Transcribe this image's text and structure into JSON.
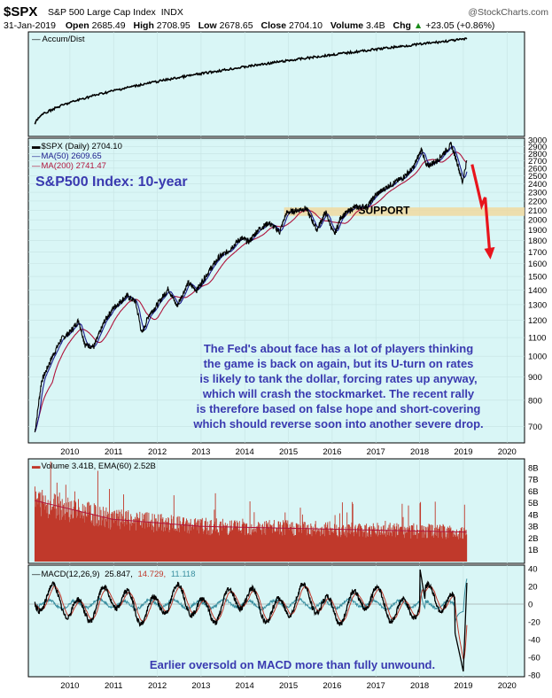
{
  "header": {
    "symbol": "$SPX",
    "name": "S&P 500 Large Cap Index",
    "exchange": "INDX",
    "watermark": "@StockCharts.com",
    "date": "31-Jan-2019",
    "open_label": "Open",
    "open": "2685.49",
    "high_label": "High",
    "high": "2708.95",
    "low_label": "Low",
    "low": "2678.65",
    "close_label": "Close",
    "close": "2704.10",
    "volume_label": "Volume",
    "volume": "3.4B",
    "chg_label": "Chg",
    "chg": "+23.05 (+0.86%)",
    "chg_arrow": "▲"
  },
  "panels": {
    "accum": {
      "label": "Accum/Dist"
    },
    "price": {
      "legend_price": "$SPX (Daily) 2704.10",
      "legend_ma50": "MA(50) 2609.65",
      "legend_ma200": "MA(200) 2741.47",
      "title": "S&P500 Index: 10-year",
      "support_label": "SUPPORT",
      "annotation": [
        "The Fed's about face has a lot of players thinking",
        "the game is back on again, but its U-turn on rates",
        "is likely to tank the dollar, forcing rates up anyway,",
        "which will crash the stockmarket. The recent rally",
        "is therefore based on false hope and short-covering",
        "which should reverse soon into another severe drop."
      ]
    },
    "volume": {
      "legend": "Volume 3.41B, EMA(60) 2.52B"
    },
    "macd": {
      "legend_name": "MACD(12,26,9)",
      "legend_v1": "25.847,",
      "legend_v2": "14.729,",
      "legend_v3": "11.118",
      "annotation": "Earlier oversold on MACD more than fully unwound."
    }
  },
  "colors": {
    "panel_bg": "#d9f6f6",
    "price_line": "#000000",
    "ma50": "#1a1a8c",
    "ma200": "#b0143c",
    "volume_bars": "#c0392b",
    "support_band": "#f0d9a0",
    "forecast_arrow": "#e8141c",
    "annotation_text": "#3a3ab0"
  },
  "chart_data": {
    "type": "line",
    "title": "S&P500 Index: 10-year",
    "x_ticks": [
      "2010",
      "2011",
      "2012",
      "2013",
      "2014",
      "2015",
      "2016",
      "2017",
      "2018",
      "2019",
      "2020"
    ],
    "price_axis": {
      "scale": "log",
      "range": [
        650,
        3000
      ],
      "ticks": [
        700,
        800,
        900,
        1000,
        1100,
        1200,
        1300,
        1400,
        1500,
        1600,
        1700,
        1800,
        1900,
        2000,
        2100,
        2200,
        2300,
        2400,
        2500,
        2600,
        2700,
        2800,
        2900,
        3000
      ]
    },
    "support_zone": [
      2040,
      2130
    ],
    "series": [
      {
        "name": "$SPX (Daily)",
        "points": [
          [
            2009.2,
            680
          ],
          [
            2009.35,
            880
          ],
          [
            2009.6,
            1000
          ],
          [
            2009.8,
            1090
          ],
          [
            2010.0,
            1130
          ],
          [
            2010.2,
            1200
          ],
          [
            2010.35,
            1060
          ],
          [
            2010.55,
            1050
          ],
          [
            2010.8,
            1200
          ],
          [
            2011.0,
            1280
          ],
          [
            2011.3,
            1360
          ],
          [
            2011.5,
            1320
          ],
          [
            2011.65,
            1120
          ],
          [
            2011.8,
            1230
          ],
          [
            2012.0,
            1300
          ],
          [
            2012.25,
            1410
          ],
          [
            2012.45,
            1290
          ],
          [
            2012.7,
            1450
          ],
          [
            2012.9,
            1400
          ],
          [
            2013.1,
            1500
          ],
          [
            2013.4,
            1650
          ],
          [
            2013.6,
            1700
          ],
          [
            2013.9,
            1820
          ],
          [
            2014.1,
            1790
          ],
          [
            2014.3,
            1900
          ],
          [
            2014.55,
            1970
          ],
          [
            2014.8,
            1880
          ],
          [
            2014.95,
            2070
          ],
          [
            2015.2,
            2100
          ],
          [
            2015.4,
            2120
          ],
          [
            2015.65,
            1900
          ],
          [
            2015.85,
            2080
          ],
          [
            2016.05,
            1850
          ],
          [
            2016.2,
            2030
          ],
          [
            2016.5,
            2130
          ],
          [
            2016.8,
            2140
          ],
          [
            2017.0,
            2270
          ],
          [
            2017.3,
            2380
          ],
          [
            2017.6,
            2470
          ],
          [
            2017.85,
            2600
          ],
          [
            2018.05,
            2870
          ],
          [
            2018.15,
            2620
          ],
          [
            2018.4,
            2700
          ],
          [
            2018.72,
            2930
          ],
          [
            2018.85,
            2700
          ],
          [
            2018.98,
            2420
          ],
          [
            2019.08,
            2704
          ]
        ]
      },
      {
        "name": "MA(50)",
        "value": 2609.65
      },
      {
        "name": "MA(200)",
        "value": 2741.47
      }
    ],
    "forecast_arrow": {
      "from": [
        2019.2,
        2650
      ],
      "to": [
        2019.6,
        1650
      ]
    },
    "volume_axis": {
      "ticks": [
        "1B",
        "2B",
        "3B",
        "4B",
        "5B",
        "6B",
        "7B",
        "8B"
      ]
    },
    "macd_axis": {
      "range": [
        -80,
        40
      ],
      "ticks": [
        40,
        20,
        0,
        -20,
        -40,
        -60,
        -80
      ]
    }
  }
}
